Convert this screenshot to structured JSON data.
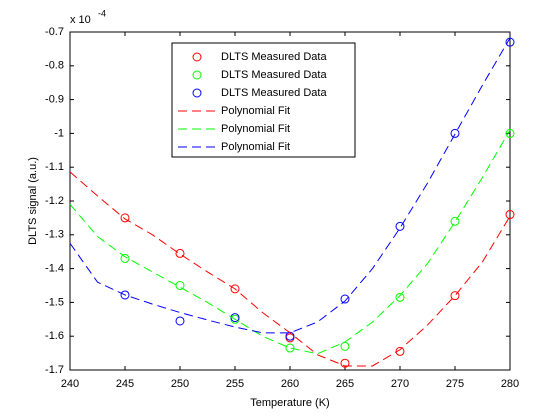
{
  "chart_data": {
    "type": "line",
    "x_label": "Temperature (K)",
    "y_label": "DLTS signal (a.u.)",
    "y_scale_base": "x 10",
    "y_scale_exponent": "-4",
    "xlim": [
      240,
      280
    ],
    "xticks": [
      240,
      245,
      250,
      255,
      260,
      265,
      270,
      275,
      280
    ],
    "ylim": [
      -1.7,
      -0.7
    ],
    "yticks": [
      -1.7,
      -1.6,
      -1.5,
      -1.4,
      -1.3,
      -1.2,
      -1.1,
      -1,
      -0.9,
      -0.8,
      -0.7
    ],
    "legend": "north",
    "grid": false,
    "series": [
      {
        "name": "DLTS Measured Data",
        "color": "#ff0000",
        "style": "marker",
        "x": [
          245,
          250,
          255,
          260,
          265,
          270,
          275,
          280
        ],
        "values": [
          -1.25,
          -1.355,
          -1.46,
          -1.605,
          -1.68,
          -1.645,
          -1.48,
          -1.24
        ]
      },
      {
        "name": "DLTS Measured Data",
        "color": "#00ff00",
        "style": "marker",
        "x": [
          245,
          250,
          255,
          260,
          265,
          270,
          275,
          280
        ],
        "values": [
          -1.37,
          -1.45,
          -1.55,
          -1.635,
          -1.63,
          -1.485,
          -1.26,
          -1.0
        ]
      },
      {
        "name": "DLTS Measured Data",
        "color": "#0000ff",
        "style": "marker",
        "x": [
          245,
          250,
          255,
          260,
          265,
          270,
          275,
          280
        ],
        "values": [
          -1.478,
          -1.555,
          -1.545,
          -1.6,
          -1.49,
          -1.275,
          -1.0,
          -0.73
        ]
      },
      {
        "name": "Polynomial Fit",
        "color": "#ff0000",
        "style": "dashed",
        "x": [
          240,
          242.5,
          245,
          247.5,
          250,
          252.5,
          255,
          257.5,
          260,
          262.5,
          265,
          267.5,
          270,
          272.5,
          275,
          277.5,
          280
        ],
        "values": [
          -1.114,
          -1.185,
          -1.253,
          -1.3,
          -1.357,
          -1.41,
          -1.46,
          -1.53,
          -1.59,
          -1.655,
          -1.688,
          -1.688,
          -1.64,
          -1.567,
          -1.48,
          -1.38,
          -1.245
        ]
      },
      {
        "name": "Polynomial Fit",
        "color": "#00ff00",
        "style": "dashed",
        "x": [
          240,
          242.5,
          245,
          247.5,
          250,
          252.5,
          255,
          257.5,
          260,
          262.5,
          265,
          267.5,
          270,
          272.5,
          275,
          277.5,
          280
        ],
        "values": [
          -1.21,
          -1.305,
          -1.365,
          -1.41,
          -1.455,
          -1.5,
          -1.55,
          -1.6,
          -1.635,
          -1.652,
          -1.617,
          -1.558,
          -1.48,
          -1.385,
          -1.262,
          -1.13,
          -0.99
        ]
      },
      {
        "name": "Polynomial Fit",
        "color": "#0000ff",
        "style": "dashed",
        "x": [
          240,
          242.5,
          245,
          247.5,
          250,
          252.5,
          255,
          257.5,
          260,
          262.5,
          265,
          267.5,
          270,
          272.5,
          275,
          277.5,
          280
        ],
        "values": [
          -1.325,
          -1.44,
          -1.478,
          -1.505,
          -1.53,
          -1.552,
          -1.573,
          -1.59,
          -1.59,
          -1.558,
          -1.496,
          -1.4,
          -1.28,
          -1.147,
          -1.002,
          -0.857,
          -0.718
        ]
      }
    ]
  }
}
